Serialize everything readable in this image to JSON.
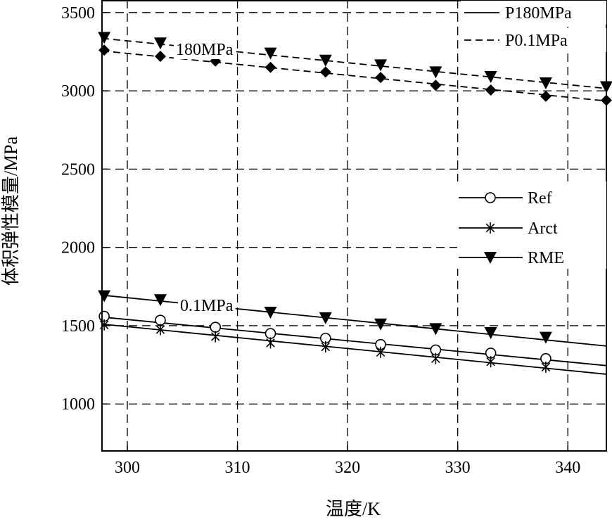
{
  "chart_data": {
    "type": "line",
    "title": "",
    "xlabel": "温度/K",
    "ylabel": "体积弹性模量/MPa",
    "xlim": [
      297.7,
      343.5
    ],
    "ylim": [
      700,
      3580
    ],
    "xticks": [
      300,
      310,
      320,
      330,
      340
    ],
    "yticks": [
      1000,
      1500,
      2000,
      2500,
      3000,
      3500
    ],
    "grid": true,
    "grid_style": "dashed",
    "legend_position": "right",
    "colors": {
      "line": "#000000",
      "marker": "#000000",
      "background": "#ffffff"
    },
    "legend_linestyles": [
      {
        "label": "P180MPa",
        "dash": "solid"
      },
      {
        "label": "P0.1MPa",
        "dash": "dashed"
      }
    ],
    "legend_markers": [
      {
        "label": "Ref",
        "marker": "circle"
      },
      {
        "label": "Arct",
        "marker": "asterisk"
      },
      {
        "label": "RME",
        "marker": "triangle-down"
      }
    ],
    "annotations": [
      "180MPa",
      "0.1MPa"
    ],
    "series": [
      {
        "pressure": "180MPa",
        "fuel": "RME",
        "marker": "triangle-down",
        "dash": "dashed",
        "x": [
          297.9,
          303,
          308,
          313,
          318,
          323,
          328,
          333,
          338,
          343.5
        ],
        "y": [
          3340,
          3305,
          3270,
          3240,
          3195,
          3165,
          3120,
          3090,
          3050,
          3025
        ],
        "fit": [
          [
            297.7,
            3335
          ],
          [
            343.5,
            3015
          ]
        ]
      },
      {
        "pressure": "180MPa",
        "fuel": "diamond",
        "marker": "diamond",
        "dash": "dashed",
        "x": [
          297.9,
          303,
          308,
          313,
          318,
          323,
          328,
          333,
          338,
          343.5
        ],
        "y": [
          3260,
          3220,
          3190,
          3150,
          3120,
          3085,
          3035,
          3005,
          2965,
          2940
        ],
        "fit": [
          [
            297.7,
            3255
          ],
          [
            343.5,
            2935
          ]
        ]
      },
      {
        "pressure": "0.1MPa",
        "fuel": "RME",
        "marker": "triangle-down",
        "dash": "solid",
        "x": [
          297.9,
          303,
          313,
          318,
          323,
          328,
          333,
          338
        ],
        "y": [
          1690,
          1665,
          1585,
          1550,
          1510,
          1480,
          1455,
          1425
        ],
        "fit": [
          [
            297.7,
            1695
          ],
          [
            343.5,
            1370
          ]
        ]
      },
      {
        "pressure": "0.1MPa",
        "fuel": "Ref",
        "marker": "circle",
        "dash": "solid",
        "x": [
          297.9,
          303,
          308,
          313,
          318,
          323,
          328,
          333,
          338
        ],
        "y": [
          1560,
          1535,
          1490,
          1450,
          1420,
          1380,
          1345,
          1325,
          1290
        ],
        "fit": [
          [
            297.7,
            1555
          ],
          [
            343.5,
            1245
          ]
        ]
      },
      {
        "pressure": "0.1MPa",
        "fuel": "Arct",
        "marker": "asterisk",
        "dash": "solid",
        "x": [
          297.9,
          303,
          308,
          313,
          318,
          323,
          328,
          333,
          338
        ],
        "y": [
          1505,
          1475,
          1430,
          1390,
          1365,
          1330,
          1290,
          1270,
          1235
        ],
        "fit": [
          [
            297.7,
            1510
          ],
          [
            343.5,
            1190
          ]
        ]
      }
    ]
  }
}
